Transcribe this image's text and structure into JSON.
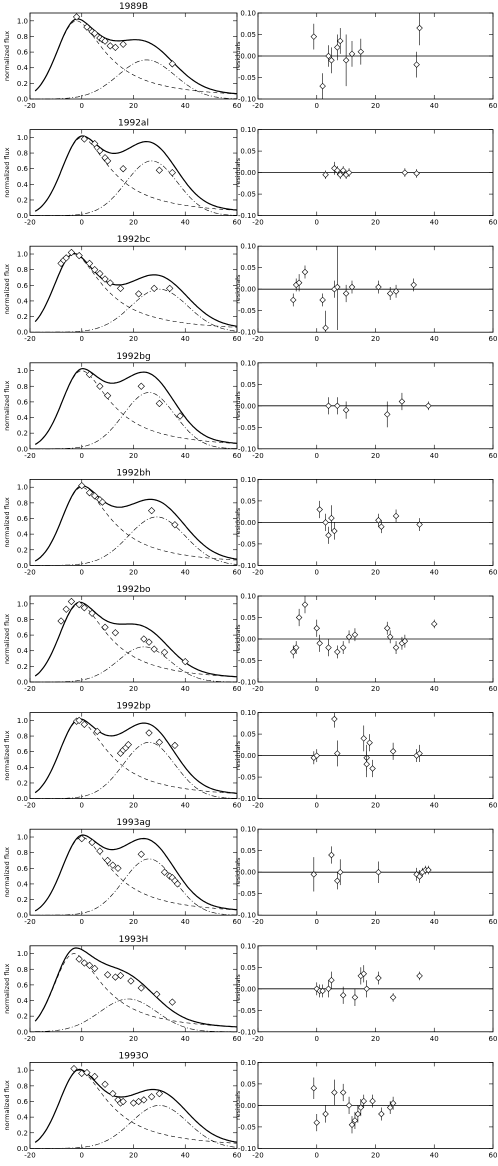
{
  "figure": {
    "left_ylabel": "normalized flux",
    "right_ylabel": "residuals",
    "x_ticks": [
      "-20",
      "0",
      "20",
      "40",
      "60"
    ],
    "flux_ticks": [
      "0.0",
      "0.2",
      "0.4",
      "0.6",
      "0.8",
      "1.0"
    ],
    "resid_ticks": [
      "-0.10",
      "-0.05",
      "0.00",
      "0.05",
      "0.10"
    ]
  },
  "chart_data": [
    {
      "type": "line",
      "title": "1989B",
      "xlim": [
        -20,
        60
      ],
      "ylim_flux": [
        0,
        1.1
      ],
      "ylim_resid": [
        -0.1,
        0.1
      ],
      "model": {
        "a1": 1.0,
        "t1": -2,
        "a2": 0.5,
        "t2": 25,
        "w2": 11
      },
      "points": [
        [
          -2,
          1.05
        ],
        [
          2,
          0.92
        ],
        [
          4,
          0.86
        ],
        [
          5,
          0.84
        ],
        [
          7,
          0.78
        ],
        [
          8,
          0.76
        ],
        [
          9,
          0.74
        ],
        [
          11,
          0.68
        ],
        [
          13,
          0.66
        ],
        [
          16,
          0.7
        ],
        [
          35,
          0.45
        ]
      ],
      "residuals": [
        [
          -1,
          0.045,
          0.03
        ],
        [
          2,
          -0.07,
          0.03
        ],
        [
          4,
          0.0,
          0.025
        ],
        [
          5,
          -0.01,
          0.03
        ],
        [
          7,
          0.02,
          0.03
        ],
        [
          8,
          0.035,
          0.03
        ],
        [
          10,
          -0.01,
          0.06
        ],
        [
          12,
          0.005,
          0.03
        ],
        [
          15,
          0.01,
          0.03
        ],
        [
          34,
          -0.02,
          0.03
        ],
        [
          35,
          0.065,
          0.04
        ]
      ]
    },
    {
      "type": "line",
      "title": "1992al",
      "xlim": [
        -20,
        60
      ],
      "ylim_flux": [
        0,
        1.1
      ],
      "ylim_resid": [
        -0.1,
        0.1
      ],
      "model": {
        "a1": 1.0,
        "t1": 0,
        "a2": 0.7,
        "t2": 27,
        "w2": 10
      },
      "points": [
        [
          1,
          0.98
        ],
        [
          5,
          0.92
        ],
        [
          7,
          0.83
        ],
        [
          9,
          0.74
        ],
        [
          10,
          0.7
        ],
        [
          16,
          0.6
        ],
        [
          30,
          0.58
        ],
        [
          35,
          0.55
        ]
      ],
      "residuals": [
        [
          3,
          -0.005,
          0.01
        ],
        [
          6,
          0.01,
          0.015
        ],
        [
          7,
          0.005,
          0.01
        ],
        [
          8,
          -0.005,
          0.01
        ],
        [
          9,
          0.005,
          0.01
        ],
        [
          10,
          -0.005,
          0.01
        ],
        [
          11,
          0.0,
          0.01
        ],
        [
          30,
          0.0,
          0.01
        ],
        [
          34,
          -0.002,
          0.01
        ]
      ]
    },
    {
      "type": "line",
      "title": "1992bc",
      "xlim": [
        -20,
        60
      ],
      "ylim_flux": [
        0,
        1.1
      ],
      "ylim_resid": [
        -0.1,
        0.1
      ],
      "model": {
        "a1": 1.0,
        "t1": -3,
        "a2": 0.55,
        "t2": 30,
        "w2": 11
      },
      "points": [
        [
          -8,
          0.88
        ],
        [
          -7,
          0.92
        ],
        [
          -6,
          0.95
        ],
        [
          -4,
          1.02
        ],
        [
          -1,
          0.98
        ],
        [
          3,
          0.88
        ],
        [
          5,
          0.8
        ],
        [
          7,
          0.75
        ],
        [
          9,
          0.68
        ],
        [
          11,
          0.63
        ],
        [
          15,
          0.56
        ],
        [
          22,
          0.49
        ],
        [
          28,
          0.56
        ],
        [
          34,
          0.56
        ]
      ],
      "residuals": [
        [
          -8,
          -0.025,
          0.015
        ],
        [
          -7,
          0.01,
          0.015
        ],
        [
          -6,
          0.015,
          0.02
        ],
        [
          -4,
          0.04,
          0.015
        ],
        [
          2,
          -0.025,
          0.015
        ],
        [
          3,
          -0.09,
          0.04
        ],
        [
          6,
          0.0,
          0.02
        ],
        [
          7,
          0.005,
          0.1
        ],
        [
          10,
          -0.01,
          0.02
        ],
        [
          12,
          0.005,
          0.015
        ],
        [
          21,
          0.005,
          0.015
        ],
        [
          25,
          -0.01,
          0.015
        ],
        [
          27,
          -0.005,
          0.015
        ],
        [
          33,
          0.01,
          0.015
        ]
      ]
    },
    {
      "type": "line",
      "title": "1992bg",
      "xlim": [
        -20,
        60
      ],
      "ylim_flux": [
        0,
        1.1
      ],
      "ylim_resid": [
        -0.1,
        0.1
      ],
      "model": {
        "a1": 1.0,
        "t1": 0,
        "a2": 0.72,
        "t2": 26,
        "w2": 10
      },
      "points": [
        [
          3,
          0.95
        ],
        [
          7,
          0.8
        ],
        [
          10,
          0.68
        ],
        [
          23,
          0.8
        ],
        [
          30,
          0.58
        ],
        [
          38,
          0.42
        ]
      ],
      "residuals": [
        [
          4,
          0.0,
          0.02
        ],
        [
          7,
          0.0,
          0.02
        ],
        [
          10,
          -0.01,
          0.02
        ],
        [
          24,
          -0.02,
          0.03
        ],
        [
          29,
          0.01,
          0.02
        ],
        [
          38,
          0.0,
          0.01
        ]
      ]
    },
    {
      "type": "line",
      "title": "1992bh",
      "xlim": [
        -20,
        60
      ],
      "ylim_flux": [
        0,
        1.1
      ],
      "ylim_resid": [
        -0.1,
        0.1
      ],
      "model": {
        "a1": 1.0,
        "t1": 0,
        "a2": 0.62,
        "t2": 29,
        "w2": 11
      },
      "points": [
        [
          0,
          1.02
        ],
        [
          3,
          0.93
        ],
        [
          5,
          0.89
        ],
        [
          7,
          0.84
        ],
        [
          8,
          0.81
        ],
        [
          27,
          0.7
        ],
        [
          36,
          0.52
        ]
      ],
      "residuals": [
        [
          1,
          0.03,
          0.02
        ],
        [
          3,
          0.0,
          0.02
        ],
        [
          4,
          -0.03,
          0.02
        ],
        [
          5,
          0.01,
          0.03
        ],
        [
          6,
          -0.02,
          0.02
        ],
        [
          21,
          0.005,
          0.015
        ],
        [
          22,
          -0.01,
          0.015
        ],
        [
          27,
          0.015,
          0.015
        ],
        [
          35,
          -0.005,
          0.015
        ]
      ]
    },
    {
      "type": "line",
      "title": "1992bo",
      "xlim": [
        -20,
        60
      ],
      "ylim_flux": [
        0,
        1.1
      ],
      "ylim_resid": [
        -0.1,
        0.1
      ],
      "model": {
        "a1": 1.0,
        "t1": -1,
        "a2": 0.45,
        "t2": 24,
        "w2": 10
      },
      "points": [
        [
          -8,
          0.78
        ],
        [
          -6,
          0.93
        ],
        [
          -4,
          1.03
        ],
        [
          -1,
          0.99
        ],
        [
          1,
          0.95
        ],
        [
          4,
          0.88
        ],
        [
          9,
          0.7
        ],
        [
          13,
          0.63
        ],
        [
          24,
          0.55
        ],
        [
          26,
          0.51
        ],
        [
          28,
          0.42
        ],
        [
          32,
          0.38
        ],
        [
          40,
          0.26
        ]
      ],
      "residuals": [
        [
          -8,
          -0.03,
          0.015
        ],
        [
          -7,
          -0.02,
          0.015
        ],
        [
          -6,
          0.05,
          0.02
        ],
        [
          -4,
          0.08,
          0.02
        ],
        [
          0,
          0.025,
          0.02
        ],
        [
          1,
          -0.01,
          0.02
        ],
        [
          4,
          -0.02,
          0.02
        ],
        [
          7,
          -0.03,
          0.015
        ],
        [
          9,
          -0.02,
          0.015
        ],
        [
          11,
          0.005,
          0.015
        ],
        [
          13,
          0.01,
          0.015
        ],
        [
          24,
          0.025,
          0.015
        ],
        [
          25,
          0.005,
          0.015
        ],
        [
          27,
          -0.02,
          0.015
        ],
        [
          29,
          -0.01,
          0.015
        ],
        [
          30,
          -0.005,
          0.015
        ],
        [
          40,
          0.035,
          0.01
        ]
      ]
    },
    {
      "type": "line",
      "title": "1992bp",
      "xlim": [
        -20,
        60
      ],
      "ylim_flux": [
        0,
        1.1
      ],
      "ylim_resid": [
        -0.1,
        0.1
      ],
      "model": {
        "a1": 1.0,
        "t1": -1,
        "a2": 0.72,
        "t2": 26,
        "w2": 10
      },
      "points": [
        [
          -2,
          0.99
        ],
        [
          -1,
          1.0
        ],
        [
          1,
          0.95
        ],
        [
          6,
          0.86
        ],
        [
          15,
          0.58
        ],
        [
          16,
          0.62
        ],
        [
          17,
          0.65
        ],
        [
          18,
          0.69
        ],
        [
          26,
          0.84
        ],
        [
          30,
          0.72
        ],
        [
          36,
          0.68
        ]
      ],
      "residuals": [
        [
          -1,
          -0.005,
          0.015
        ],
        [
          0,
          0.0,
          0.015
        ],
        [
          6,
          0.085,
          0.02
        ],
        [
          7,
          0.005,
          0.03
        ],
        [
          16,
          0.04,
          0.03
        ],
        [
          17,
          -0.005,
          0.03
        ],
        [
          17,
          -0.02,
          0.03
        ],
        [
          18,
          0.03,
          0.02
        ],
        [
          19,
          -0.03,
          0.02
        ],
        [
          26,
          0.01,
          0.02
        ],
        [
          34,
          0.0,
          0.015
        ],
        [
          35,
          0.005,
          0.02
        ]
      ]
    },
    {
      "type": "line",
      "title": "1993ag",
      "xlim": [
        -20,
        60
      ],
      "ylim_flux": [
        0,
        1.1
      ],
      "ylim_resid": [
        -0.1,
        0.1
      ],
      "model": {
        "a1": 1.0,
        "t1": 0,
        "a2": 0.72,
        "t2": 26,
        "w2": 10
      },
      "points": [
        [
          0,
          0.98
        ],
        [
          4,
          0.93
        ],
        [
          7,
          0.82
        ],
        [
          10,
          0.7
        ],
        [
          12,
          0.64
        ],
        [
          14,
          0.6
        ],
        [
          23,
          0.78
        ],
        [
          32,
          0.55
        ],
        [
          34,
          0.5
        ],
        [
          35,
          0.48
        ],
        [
          36,
          0.44
        ],
        [
          37,
          0.4
        ]
      ],
      "residuals": [
        [
          -1,
          -0.005,
          0.04
        ],
        [
          5,
          0.04,
          0.02
        ],
        [
          7,
          -0.02,
          0.02
        ],
        [
          8,
          0.0,
          0.03
        ],
        [
          21,
          0.0,
          0.025
        ],
        [
          34,
          -0.005,
          0.015
        ],
        [
          35,
          -0.01,
          0.015
        ],
        [
          36,
          0.0,
          0.01
        ],
        [
          37,
          0.005,
          0.01
        ],
        [
          38,
          0.005,
          0.01
        ]
      ]
    },
    {
      "type": "line",
      "title": "1993H",
      "xlim": [
        -20,
        60
      ],
      "ylim_flux": [
        0,
        1.1
      ],
      "ylim_resid": [
        -0.1,
        0.1
      ],
      "model": {
        "a1": 1.0,
        "t1": -3,
        "a2": 0.42,
        "t2": 18,
        "w2": 11
      },
      "points": [
        [
          -1,
          0.93
        ],
        [
          1,
          0.88
        ],
        [
          3,
          0.85
        ],
        [
          5,
          0.81
        ],
        [
          10,
          0.73
        ],
        [
          13,
          0.7
        ],
        [
          15,
          0.72
        ],
        [
          19,
          0.65
        ],
        [
          23,
          0.56
        ],
        [
          29,
          0.48
        ],
        [
          35,
          0.38
        ]
      ],
      "residuals": [
        [
          0,
          0.0,
          0.015
        ],
        [
          1,
          -0.005,
          0.015
        ],
        [
          2,
          -0.005,
          0.015
        ],
        [
          4,
          0.0,
          0.02
        ],
        [
          5,
          0.02,
          0.02
        ],
        [
          9,
          -0.015,
          0.02
        ],
        [
          13,
          -0.02,
          0.02
        ],
        [
          15,
          0.03,
          0.02
        ],
        [
          16,
          0.035,
          0.02
        ],
        [
          17,
          0.0,
          0.02
        ],
        [
          21,
          0.025,
          0.015
        ],
        [
          26,
          -0.02,
          0.01
        ],
        [
          35,
          0.03,
          0.01
        ]
      ]
    },
    {
      "type": "line",
      "title": "1993O",
      "xlim": [
        -20,
        60
      ],
      "ylim_flux": [
        0,
        1.1
      ],
      "ylim_resid": [
        -0.1,
        0.1
      ],
      "model": {
        "a1": 1.0,
        "t1": -1,
        "a2": 0.55,
        "t2": 30,
        "w2": 11
      },
      "points": [
        [
          -3,
          1.02
        ],
        [
          0,
          0.96
        ],
        [
          2,
          0.97
        ],
        [
          5,
          0.92
        ],
        [
          9,
          0.82
        ],
        [
          12,
          0.7
        ],
        [
          14,
          0.62
        ],
        [
          15,
          0.58
        ],
        [
          16,
          0.6
        ],
        [
          20,
          0.58
        ],
        [
          22,
          0.6
        ],
        [
          24,
          0.62
        ],
        [
          27,
          0.66
        ],
        [
          30,
          0.7
        ]
      ],
      "residuals": [
        [
          -1,
          0.04,
          0.025
        ],
        [
          0,
          -0.04,
          0.02
        ],
        [
          3,
          -0.02,
          0.02
        ],
        [
          6,
          0.03,
          0.03
        ],
        [
          9,
          0.03,
          0.02
        ],
        [
          11,
          0.0,
          0.02
        ],
        [
          12,
          -0.045,
          0.02
        ],
        [
          13,
          -0.035,
          0.02
        ],
        [
          14,
          -0.02,
          0.02
        ],
        [
          15,
          -0.005,
          0.02
        ],
        [
          16,
          0.01,
          0.015
        ],
        [
          19,
          0.01,
          0.015
        ],
        [
          22,
          -0.02,
          0.015
        ],
        [
          25,
          -0.005,
          0.015
        ],
        [
          26,
          0.005,
          0.015
        ]
      ]
    }
  ]
}
